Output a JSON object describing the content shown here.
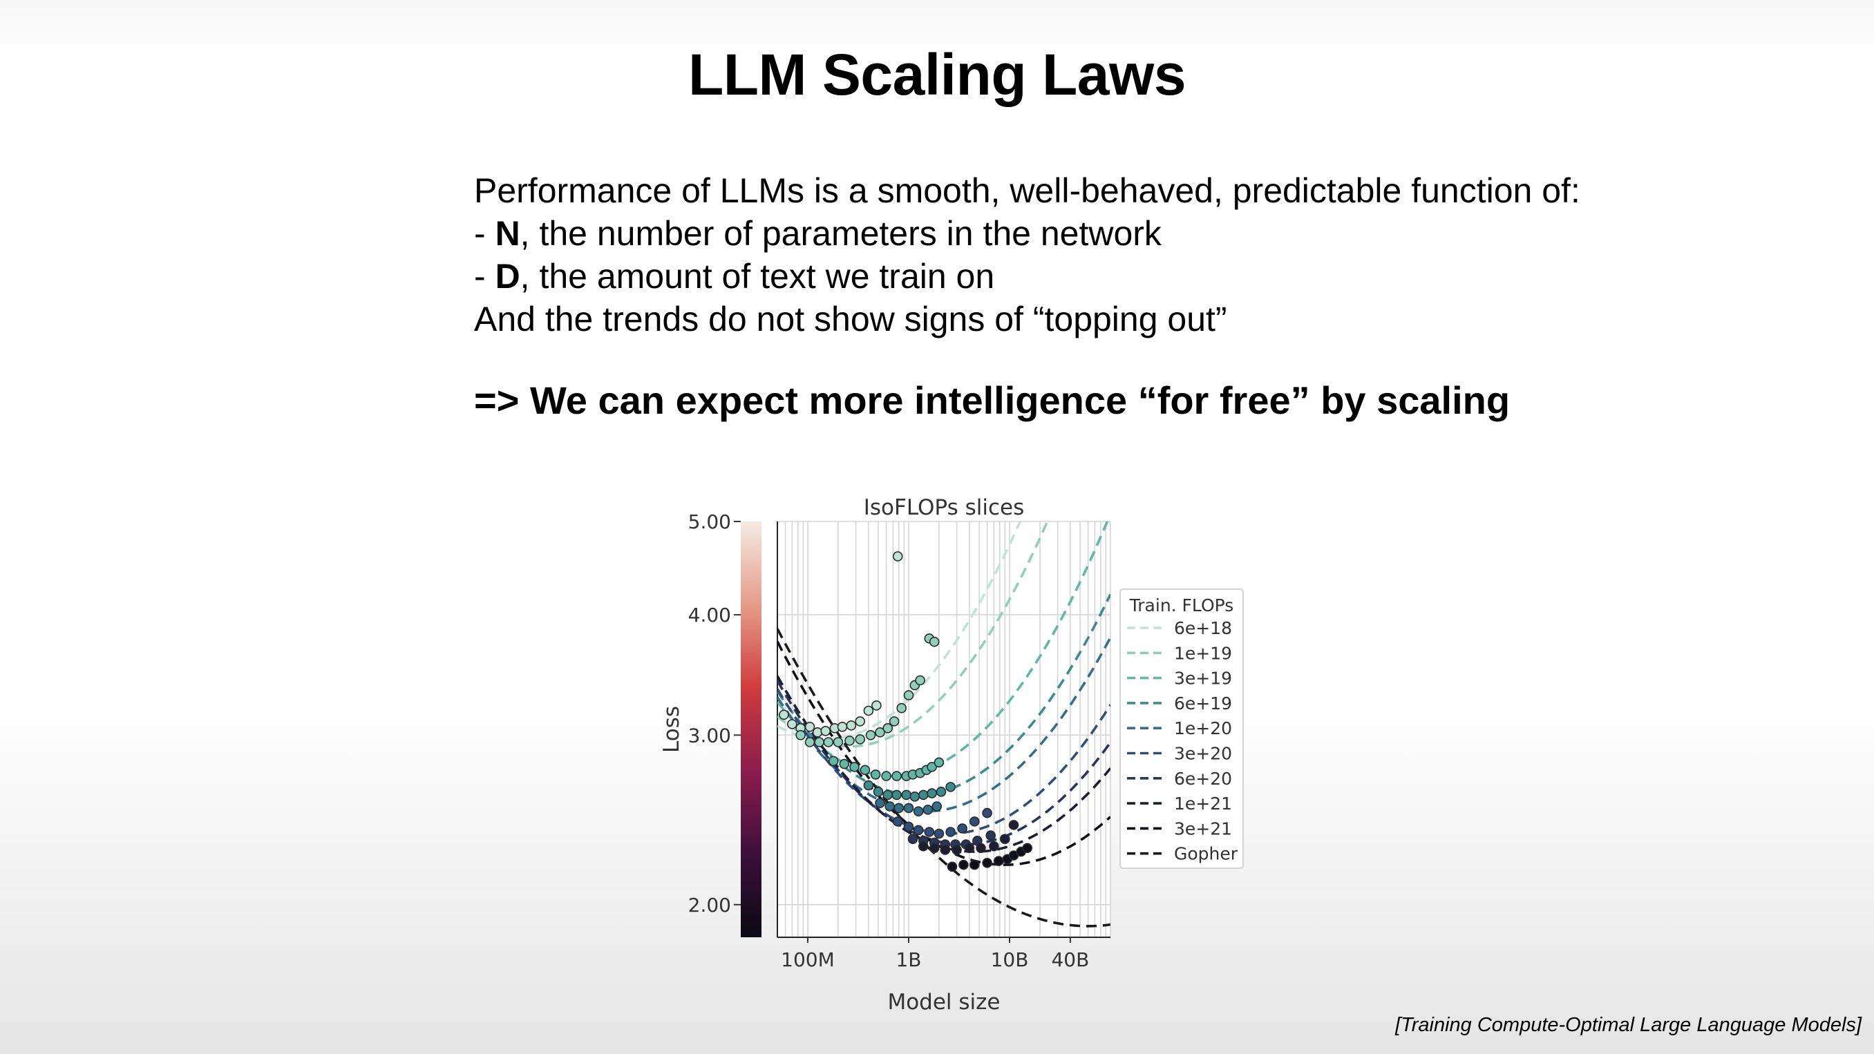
{
  "slide": {
    "title": "LLM Scaling Laws",
    "intro": "Performance of LLMs is a smooth, well-behaved, predictable function of:",
    "bullets": [
      {
        "dash": "-",
        "term": "N",
        "text": ", the number of parameters in the network"
      },
      {
        "dash": "-",
        "term": "D",
        "text": ", the amount of text we train on"
      }
    ],
    "trend": "And the trends do not show signs of “topping out”",
    "conclusion": "=> We can expect more intelligence “for free” by scaling",
    "citation": "[Training Compute-Optimal Large Language Models]"
  },
  "chart_data": {
    "type": "scatter",
    "title": "IsoFLOPs slices",
    "xlabel": "Model size",
    "ylabel": "Loss",
    "x_scale": "log",
    "y_scale": "log",
    "xlim": [
      50000000,
      100000000000
    ],
    "ylim": [
      1.85,
      5.0
    ],
    "x_ticks": [
      {
        "value": 100000000,
        "label": "100M"
      },
      {
        "value": 1000000000,
        "label": "1B"
      },
      {
        "value": 10000000000,
        "label": "10B"
      },
      {
        "value": 40000000000,
        "label": "40B"
      }
    ],
    "y_ticks": [
      {
        "value": 2.0,
        "label": "2.00"
      },
      {
        "value": 3.0,
        "label": "3.00"
      },
      {
        "value": 4.0,
        "label": "4.00"
      },
      {
        "value": 5.0,
        "label": "5.00"
      }
    ],
    "grid": true,
    "legend_title": "Train. FLOPs",
    "legend_position": "right, outside",
    "colorbar": {
      "colors": [
        "#f5ebe3",
        "#e69c8a",
        "#cf3c3e",
        "#8c1c4c",
        "#3c0f3a",
        "#0a0a14"
      ]
    },
    "series": [
      {
        "name": "6e+18",
        "color": "#bfe4d6",
        "points": [
          [
            58000000,
            3.15
          ],
          [
            70000000,
            3.08
          ],
          [
            85000000,
            3.05
          ],
          [
            105000000,
            3.06
          ],
          [
            125000000,
            3.02
          ],
          [
            150000000,
            3.03
          ],
          [
            185000000,
            3.05
          ],
          [
            220000000,
            3.06
          ],
          [
            270000000,
            3.07
          ],
          [
            330000000,
            3.1
          ],
          [
            400000000,
            3.18
          ],
          [
            480000000,
            3.22
          ],
          [
            780000000,
            4.6
          ]
        ],
        "fit": {
          "x0": 150000000,
          "y0": 2.97,
          "k": 0.14
        }
      },
      {
        "name": "1e+19",
        "color": "#8fd0bd",
        "points": [
          [
            85000000,
            3.0
          ],
          [
            105000000,
            2.95
          ],
          [
            130000000,
            2.95
          ],
          [
            160000000,
            2.95
          ],
          [
            200000000,
            2.95
          ],
          [
            260000000,
            2.96
          ],
          [
            330000000,
            2.97
          ],
          [
            420000000,
            3.0
          ],
          [
            520000000,
            3.02
          ],
          [
            620000000,
            3.05
          ],
          [
            720000000,
            3.1
          ],
          [
            850000000,
            3.2
          ],
          [
            1000000000,
            3.3
          ],
          [
            1150000000,
            3.38
          ],
          [
            1300000000,
            3.42
          ],
          [
            1600000000,
            3.78
          ],
          [
            1800000000,
            3.75
          ]
        ],
        "fit": {
          "x0": 260000000,
          "y0": 2.92,
          "k": 0.14
        }
      },
      {
        "name": "3e+19",
        "color": "#5fb8a6",
        "points": [
          [
            180000000,
            2.82
          ],
          [
            230000000,
            2.8
          ],
          [
            290000000,
            2.78
          ],
          [
            370000000,
            2.76
          ],
          [
            470000000,
            2.73
          ],
          [
            600000000,
            2.72
          ],
          [
            760000000,
            2.72
          ],
          [
            950000000,
            2.72
          ],
          [
            1100000000,
            2.73
          ],
          [
            1300000000,
            2.74
          ],
          [
            1500000000,
            2.76
          ],
          [
            1700000000,
            2.78
          ],
          [
            2000000000,
            2.81
          ]
        ],
        "fit": {
          "x0": 700000000,
          "y0": 2.72,
          "k": 0.135
        }
      },
      {
        "name": "6e+19",
        "color": "#3c8c8c",
        "points": [
          [
            400000000,
            2.66
          ],
          [
            500000000,
            2.62
          ],
          [
            620000000,
            2.6
          ],
          [
            760000000,
            2.6
          ],
          [
            950000000,
            2.6
          ],
          [
            1150000000,
            2.59
          ],
          [
            1400000000,
            2.6
          ],
          [
            1700000000,
            2.61
          ],
          [
            2100000000,
            2.62
          ],
          [
            2600000000,
            2.65
          ]
        ],
        "fit": {
          "x0": 1200000000,
          "y0": 2.6,
          "k": 0.13
        }
      },
      {
        "name": "1e+20",
        "color": "#336e8a",
        "points": [
          [
            520000000,
            2.55
          ],
          [
            650000000,
            2.53
          ],
          [
            800000000,
            2.52
          ],
          [
            1000000000,
            2.52
          ],
          [
            1250000000,
            2.5
          ],
          [
            1550000000,
            2.51
          ],
          [
            1900000000,
            2.53
          ]
        ],
        "fit": {
          "x0": 1500000000,
          "y0": 2.5,
          "k": 0.125
        }
      },
      {
        "name": "3e+20",
        "color": "#2f4f7a",
        "points": [
          [
            780000000,
            2.44
          ],
          [
            1000000000,
            2.41
          ],
          [
            1250000000,
            2.39
          ],
          [
            1600000000,
            2.38
          ],
          [
            2000000000,
            2.37
          ],
          [
            2600000000,
            2.38
          ],
          [
            3400000000,
            2.4
          ],
          [
            4500000000,
            2.44
          ],
          [
            6000000000,
            2.49
          ]
        ],
        "fit": {
          "x0": 2500000000,
          "y0": 2.37,
          "k": 0.12
        }
      },
      {
        "name": "6e+20",
        "color": "#2a355c",
        "points": [
          [
            1100000000,
            2.34
          ],
          [
            1400000000,
            2.33
          ],
          [
            1800000000,
            2.32
          ],
          [
            2300000000,
            2.31
          ],
          [
            2900000000,
            2.31
          ],
          [
            3700000000,
            2.31
          ],
          [
            4800000000,
            2.33
          ],
          [
            6500000000,
            2.36
          ]
        ],
        "fit": {
          "x0": 3500000000,
          "y0": 2.31,
          "k": 0.115
        }
      },
      {
        "name": "1e+21",
        "color": "#1c1e32",
        "points": [
          [
            1400000000,
            2.3
          ],
          [
            1800000000,
            2.29
          ],
          [
            2300000000,
            2.28
          ],
          [
            3000000000,
            2.28
          ],
          [
            4000000000,
            2.29
          ],
          [
            5200000000,
            2.29
          ],
          [
            7000000000,
            2.3
          ],
          [
            9000000000,
            2.34
          ],
          [
            11000000000,
            2.42
          ]
        ],
        "fit": {
          "x0": 4500000000,
          "y0": 2.27,
          "k": 0.11
        }
      },
      {
        "name": "3e+21",
        "color": "#10101a",
        "points": [
          [
            2700000000,
            2.19
          ],
          [
            3500000000,
            2.2
          ],
          [
            4500000000,
            2.2
          ],
          [
            6000000000,
            2.21
          ],
          [
            7800000000,
            2.22
          ],
          [
            9500000000,
            2.23
          ],
          [
            11000000000,
            2.25
          ],
          [
            13000000000,
            2.27
          ],
          [
            15000000000,
            2.29
          ]
        ],
        "fit": {
          "x0": 9000000000,
          "y0": 2.2,
          "k": 0.105
        }
      },
      {
        "name": "Gopher",
        "color": "#1a1a1a",
        "points": [],
        "fit": {
          "x0": 60000000000,
          "y0": 1.9,
          "k": 0.075
        }
      }
    ]
  }
}
